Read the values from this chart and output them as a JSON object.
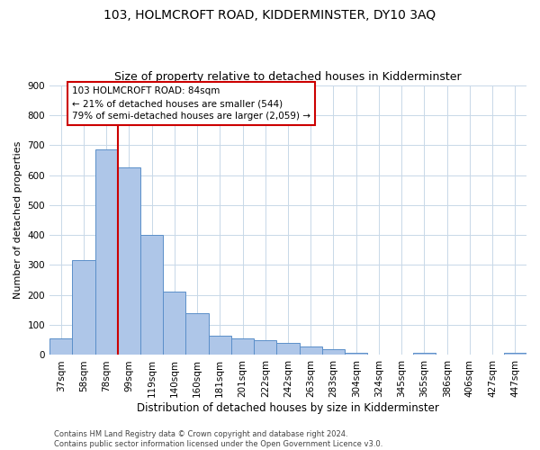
{
  "title": "103, HOLMCROFT ROAD, KIDDERMINSTER, DY10 3AQ",
  "subtitle": "Size of property relative to detached houses in Kidderminster",
  "xlabel": "Distribution of detached houses by size in Kidderminster",
  "ylabel": "Number of detached properties",
  "categories": [
    "37sqm",
    "58sqm",
    "78sqm",
    "99sqm",
    "119sqm",
    "140sqm",
    "160sqm",
    "181sqm",
    "201sqm",
    "222sqm",
    "242sqm",
    "263sqm",
    "283sqm",
    "304sqm",
    "324sqm",
    "345sqm",
    "365sqm",
    "386sqm",
    "406sqm",
    "427sqm",
    "447sqm"
  ],
  "values": [
    55,
    315,
    685,
    625,
    400,
    210,
    140,
    65,
    55,
    50,
    40,
    28,
    20,
    8,
    0,
    0,
    8,
    0,
    0,
    0,
    8
  ],
  "bar_color": "#aec6e8",
  "bar_edge_color": "#5b8fc9",
  "redline_index": 2.5,
  "annotation_text": "103 HOLMCROFT ROAD: 84sqm\n← 21% of detached houses are smaller (544)\n79% of semi-detached houses are larger (2,059) →",
  "annotation_box_color": "#ffffff",
  "annotation_box_edge_color": "#cc0000",
  "redline_color": "#cc0000",
  "footer_line1": "Contains HM Land Registry data © Crown copyright and database right 2024.",
  "footer_line2": "Contains public sector information licensed under the Open Government Licence v3.0.",
  "background_color": "#ffffff",
  "grid_color": "#c8d8e8",
  "ylim": [
    0,
    900
  ],
  "yticks": [
    0,
    100,
    200,
    300,
    400,
    500,
    600,
    700,
    800,
    900
  ],
  "title_fontsize": 10,
  "subtitle_fontsize": 9,
  "xlabel_fontsize": 8.5,
  "ylabel_fontsize": 8,
  "tick_fontsize": 7.5,
  "annotation_fontsize": 7.5,
  "footer_fontsize": 6
}
